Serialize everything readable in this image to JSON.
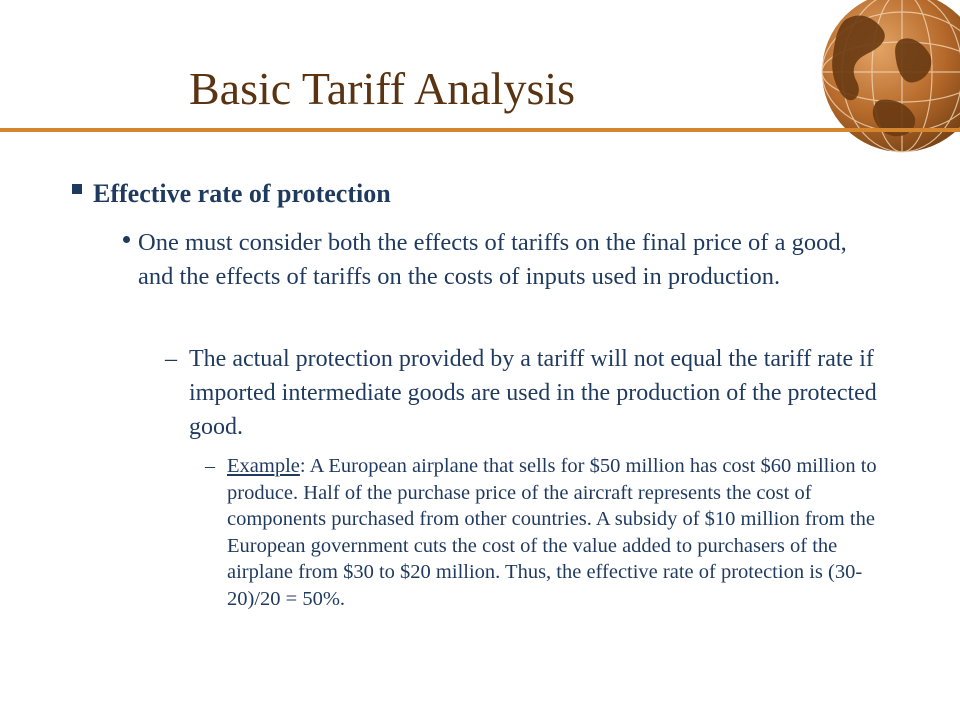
{
  "slide": {
    "title": "Basic Tariff Analysis",
    "bullet_level1": "Effective rate of protection",
    "bullet_level2": "One must consider both the effects of tariffs on the final price of a good, and the effects of tariffs on the costs of inputs used in production.",
    "bullet_level3_marker": "–",
    "bullet_level3": "The actual protection provided by a tariff will not equal the tariff rate if imported intermediate goods are used in the production of the protected good.",
    "bullet_level4_marker": "–",
    "bullet_level4_label": "Example",
    "bullet_level4_text": ": A European airplane that sells for $50 million has cost $60 million to produce. Half of the purchase price of the aircraft represents the cost of components purchased from other countries. A subsidy of $10 million from the European government cuts the cost of the value added to purchasers of the airplane from $30 to $20 million. Thus, the effective rate of protection is (30-20)/20 = 50%."
  },
  "colors": {
    "title": "#5a3412",
    "body_text": "#1f3a5f",
    "accent_rule": "#d6852f",
    "globe_fill": "#b5692a",
    "globe_land": "#6a3a12"
  },
  "icons": {
    "globe": "globe-icon",
    "level1_marker": "square-bullet-icon",
    "level2_marker": "round-bullet-icon"
  }
}
